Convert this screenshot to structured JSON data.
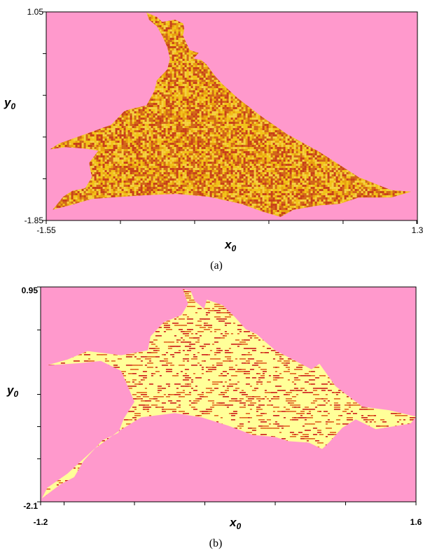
{
  "colors": {
    "background": "#ff99cc",
    "panel_a_fill_base": "#e8a010",
    "panel_a_speckle": [
      "#f2c21a",
      "#d2661a",
      "#c8401a",
      "#f5d040"
    ],
    "panel_b_fill_base": "#ffff99",
    "panel_b_speckle": [
      "#cc1a1a",
      "#e06020"
    ],
    "axis": "#000000"
  },
  "chart_data": [
    {
      "type": "heatmap",
      "caption": "(a)",
      "xlabel": "x",
      "xlabel_sub": "0",
      "ylabel": "y",
      "ylabel_sub": "0",
      "xlim": [
        -1.55,
        1.3
      ],
      "ylim": [
        -1.85,
        1.05
      ],
      "x_tick_labels": [
        "-1.55",
        "1.3"
      ],
      "y_tick_labels": [
        "1.05",
        "-1.85"
      ],
      "grid": false,
      "region_outline": [
        [
          -0.78,
          1.04
        ],
        [
          -0.7,
          0.98
        ],
        [
          -0.66,
          0.91
        ],
        [
          -0.56,
          0.94
        ],
        [
          -0.5,
          0.89
        ],
        [
          -0.49,
          0.82
        ],
        [
          -0.5,
          0.72
        ],
        [
          -0.45,
          0.52
        ],
        [
          -0.38,
          0.48
        ],
        [
          -0.42,
          0.4
        ],
        [
          -0.36,
          0.38
        ],
        [
          -0.32,
          0.32
        ],
        [
          -0.25,
          0.15
        ],
        [
          -0.2,
          0.05
        ],
        [
          -0.08,
          -0.15
        ],
        [
          0.1,
          -0.4
        ],
        [
          0.3,
          -0.65
        ],
        [
          0.55,
          -0.9
        ],
        [
          0.85,
          -1.25
        ],
        [
          1.1,
          -1.43
        ],
        [
          1.25,
          -1.45
        ],
        [
          1.1,
          -1.53
        ],
        [
          0.85,
          -1.53
        ],
        [
          0.7,
          -1.62
        ],
        [
          0.55,
          -1.64
        ],
        [
          0.35,
          -1.7
        ],
        [
          0.25,
          -1.8
        ],
        [
          0.1,
          -1.72
        ],
        [
          -0.05,
          -1.62
        ],
        [
          -0.3,
          -1.52
        ],
        [
          -0.55,
          -1.48
        ],
        [
          -0.8,
          -1.5
        ],
        [
          -1.05,
          -1.53
        ],
        [
          -1.2,
          -1.55
        ],
        [
          -1.35,
          -1.63
        ],
        [
          -1.5,
          -1.7
        ],
        [
          -1.42,
          -1.52
        ],
        [
          -1.35,
          -1.44
        ],
        [
          -1.25,
          -1.4
        ],
        [
          -1.2,
          -1.25
        ],
        [
          -1.22,
          -1.05
        ],
        [
          -1.15,
          -0.88
        ],
        [
          -1.25,
          -0.85
        ],
        [
          -1.4,
          -0.83
        ],
        [
          -1.52,
          -0.86
        ],
        [
          -1.45,
          -0.78
        ],
        [
          -1.25,
          -0.65
        ],
        [
          -1.05,
          -0.52
        ],
        [
          -0.95,
          -0.33
        ],
        [
          -0.9,
          -0.3
        ],
        [
          -0.78,
          -0.25
        ],
        [
          -0.72,
          -0.05
        ],
        [
          -0.7,
          0.1
        ],
        [
          -0.62,
          0.25
        ],
        [
          -0.6,
          0.4
        ],
        [
          -0.62,
          0.56
        ],
        [
          -0.66,
          0.72
        ],
        [
          -0.7,
          0.85
        ],
        [
          -0.76,
          0.94
        ]
      ]
    },
    {
      "type": "heatmap",
      "caption": "(b)",
      "xlabel": "x",
      "xlabel_sub": "0",
      "ylabel": "y",
      "ylabel_sub": "0",
      "xlim": [
        -1.2,
        1.6
      ],
      "ylim": [
        -2.1,
        0.95
      ],
      "x_tick_labels": [
        "-1.2",
        "1.6"
      ],
      "y_tick_labels": [
        "0.95",
        "-2.1"
      ],
      "grid": false,
      "region_outline": [
        [
          -0.08,
          0.89
        ],
        [
          -0.05,
          0.75
        ],
        [
          0.02,
          0.64
        ],
        [
          0.04,
          0.77
        ],
        [
          0.16,
          0.69
        ],
        [
          0.25,
          0.52
        ],
        [
          0.33,
          0.35
        ],
        [
          0.41,
          0.28
        ],
        [
          0.55,
          0.05
        ],
        [
          0.82,
          -0.22
        ],
        [
          0.88,
          -0.14
        ],
        [
          1.0,
          -0.46
        ],
        [
          1.2,
          -0.75
        ],
        [
          1.4,
          -0.8
        ],
        [
          1.6,
          -0.89
        ],
        [
          1.56,
          -0.99
        ],
        [
          1.3,
          -1.07
        ],
        [
          1.15,
          -0.93
        ],
        [
          1.05,
          -1.05
        ],
        [
          0.95,
          -1.26
        ],
        [
          0.9,
          -1.35
        ],
        [
          0.8,
          -1.26
        ],
        [
          0.65,
          -1.24
        ],
        [
          0.55,
          -1.18
        ],
        [
          0.38,
          -1.15
        ],
        [
          0.2,
          -1.02
        ],
        [
          0.0,
          -0.9
        ],
        [
          -0.2,
          -0.84
        ],
        [
          -0.45,
          -0.9
        ],
        [
          -0.62,
          -1.1
        ],
        [
          -0.8,
          -1.35
        ],
        [
          -1.0,
          -1.7
        ],
        [
          -1.15,
          -1.9
        ],
        [
          -1.19,
          -2.05
        ],
        [
          -1.05,
          -1.85
        ],
        [
          -0.95,
          -1.75
        ],
        [
          -0.88,
          -1.52
        ],
        [
          -0.74,
          -1.23
        ],
        [
          -0.62,
          -1.12
        ],
        [
          -0.58,
          -0.92
        ],
        [
          -0.5,
          -0.68
        ],
        [
          -0.6,
          -0.24
        ],
        [
          -0.75,
          -0.1
        ],
        [
          -0.9,
          -0.13
        ],
        [
          -1.05,
          -0.15
        ],
        [
          -1.15,
          -0.16
        ],
        [
          -1.0,
          -0.08
        ],
        [
          -0.85,
          0.04
        ],
        [
          -0.6,
          -0.02
        ],
        [
          -0.4,
          0.05
        ],
        [
          -0.38,
          0.25
        ],
        [
          -0.28,
          0.45
        ],
        [
          -0.15,
          0.55
        ],
        [
          -0.1,
          0.71
        ],
        [
          -0.14,
          0.92
        ]
      ]
    }
  ]
}
